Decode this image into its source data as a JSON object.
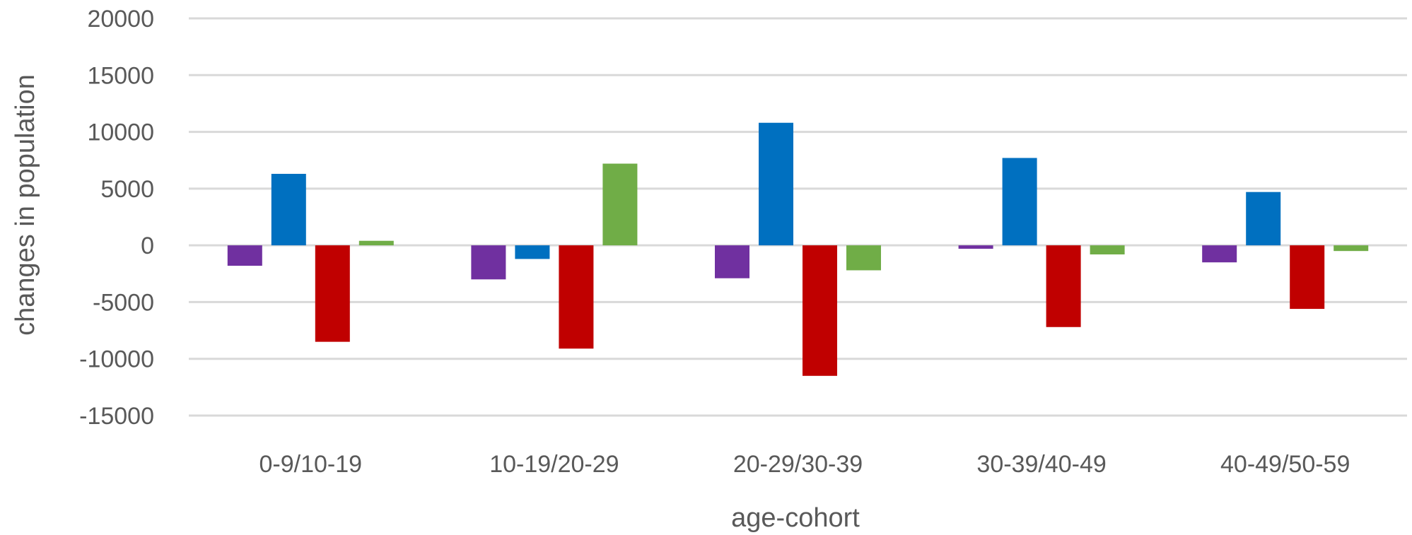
{
  "chart_data": {
    "type": "bar",
    "title": "",
    "xlabel": "age-cohort",
    "ylabel": "changes in population",
    "ylim": [
      -15000,
      20000
    ],
    "yticks": [
      20000,
      15000,
      10000,
      5000,
      0,
      -5000,
      -10000,
      -15000
    ],
    "grid": true,
    "legend": "none",
    "categories": [
      "0-9/10-19",
      "10-19/20-29",
      "20-29/30-39",
      "30-39/40-49",
      "40-49/50-59"
    ],
    "series": [
      {
        "color": "#7030a0",
        "values": [
          -1800,
          -3000,
          -2900,
          -300,
          -1500
        ]
      },
      {
        "color": "#0070c0",
        "values": [
          6300,
          -1200,
          10800,
          7700,
          4700
        ]
      },
      {
        "color": "#c00000",
        "values": [
          -8500,
          -9100,
          -11500,
          -7200,
          -5600
        ]
      },
      {
        "color": "#70ad47",
        "values": [
          400,
          7200,
          -2200,
          -800,
          -500
        ]
      }
    ]
  }
}
